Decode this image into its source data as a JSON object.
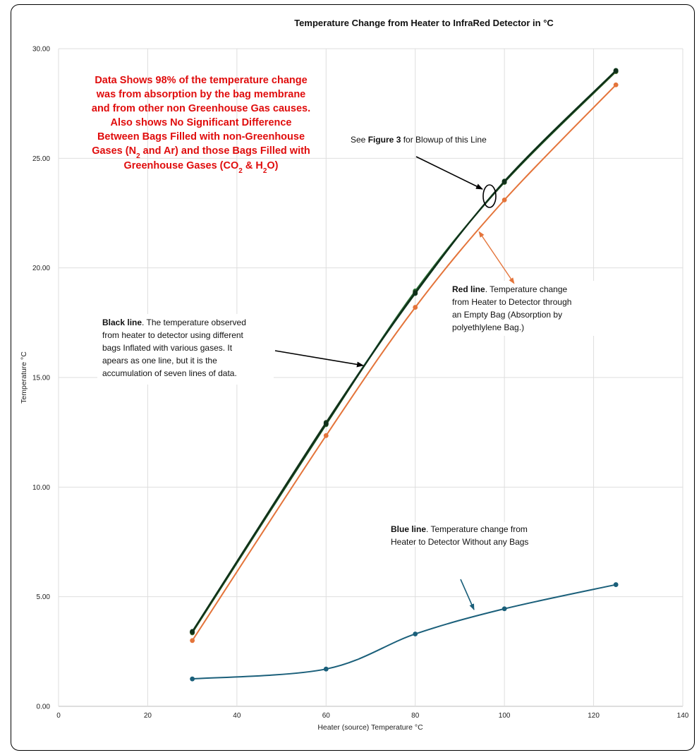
{
  "chart_data": {
    "type": "line",
    "title": "Temperature Change from Heater to  InfraRed Detector in °C",
    "xlabel": "Heater (source) Temperature °C",
    "ylabel": "Temperature °C",
    "xlim": [
      0,
      140
    ],
    "ylim": [
      0,
      30
    ],
    "x_ticks": [
      "0",
      "20",
      "40",
      "60",
      "80",
      "100",
      "120",
      "140"
    ],
    "y_ticks": [
      "0.00",
      "5.00",
      "10.00",
      "15.00",
      "20.00",
      "25.00",
      "30.00"
    ],
    "grid": true,
    "x": [
      30,
      60,
      80,
      100,
      125
    ],
    "series": [
      {
        "color": "#1e3d1e",
        "values": [
          3.4,
          12.95,
          18.85,
          23.95,
          29.0
        ]
      },
      {
        "color": "#2e7a3a",
        "values": [
          3.35,
          12.85,
          18.95,
          23.9,
          28.95
        ]
      },
      {
        "color": "#1b6a78",
        "values": [
          3.38,
          12.9,
          18.9,
          23.92,
          28.98
        ]
      },
      {
        "color": "#8b8a2a",
        "values": [
          3.36,
          12.88,
          18.87,
          23.93,
          28.96
        ]
      },
      {
        "color": "#1a4a2a",
        "values": [
          3.42,
          12.92,
          18.83,
          23.96,
          29.01
        ]
      },
      {
        "color": "#264d20",
        "values": [
          3.37,
          12.87,
          18.9,
          23.91,
          28.97
        ]
      },
      {
        "color": "#0f2f1a",
        "values": [
          3.4,
          12.9,
          18.86,
          23.94,
          28.99
        ]
      },
      {
        "color": "#e4743a",
        "values": [
          3.0,
          12.35,
          18.2,
          23.1,
          28.35
        ]
      },
      {
        "color": "#1a5f7a",
        "values": [
          1.25,
          1.7,
          3.3,
          4.45,
          5.55
        ]
      }
    ],
    "annotations": {
      "red_note": [
        "Data Shows 98% of the temperature change",
        "was from absorption by the bag membrane",
        "and from other non Greenhouse Gas causes.",
        "Also shows No Significant Difference",
        "Between Bags Filled with non-Greenhouse"
      ],
      "red_note_6": {
        "a": "Gases (N",
        "sub1": "2",
        "b": " and Ar) and those Bags Filled with"
      },
      "red_note_7": {
        "a": "Greenhouse Gases (CO",
        "sub1": "2",
        "b": " & H",
        "sub2": "2",
        "c": "O)"
      },
      "figure_note": {
        "a": "See ",
        "bold": "Figure 3",
        "b": " for Blowup of this Line"
      },
      "black_line_note": {
        "bold": "Black line",
        "lines": [
          ".  The temperature observed",
          "from heater to detector using different",
          "bags Inflated with various gases.  It",
          "apears as one line, but it is the",
          "accumulation of seven lines of data."
        ]
      },
      "red_line_note": {
        "bold": "Red line",
        "lines": [
          ".  Temperature change",
          "from Heater to Detector through",
          "an Empty Bag  (Absorption by",
          "polyethlylene Bag.)"
        ]
      },
      "blue_line_note": {
        "bold": "Blue line",
        "lines": [
          ".  Temperature change from",
          "Heater to Detector Without any Bags"
        ]
      }
    }
  }
}
